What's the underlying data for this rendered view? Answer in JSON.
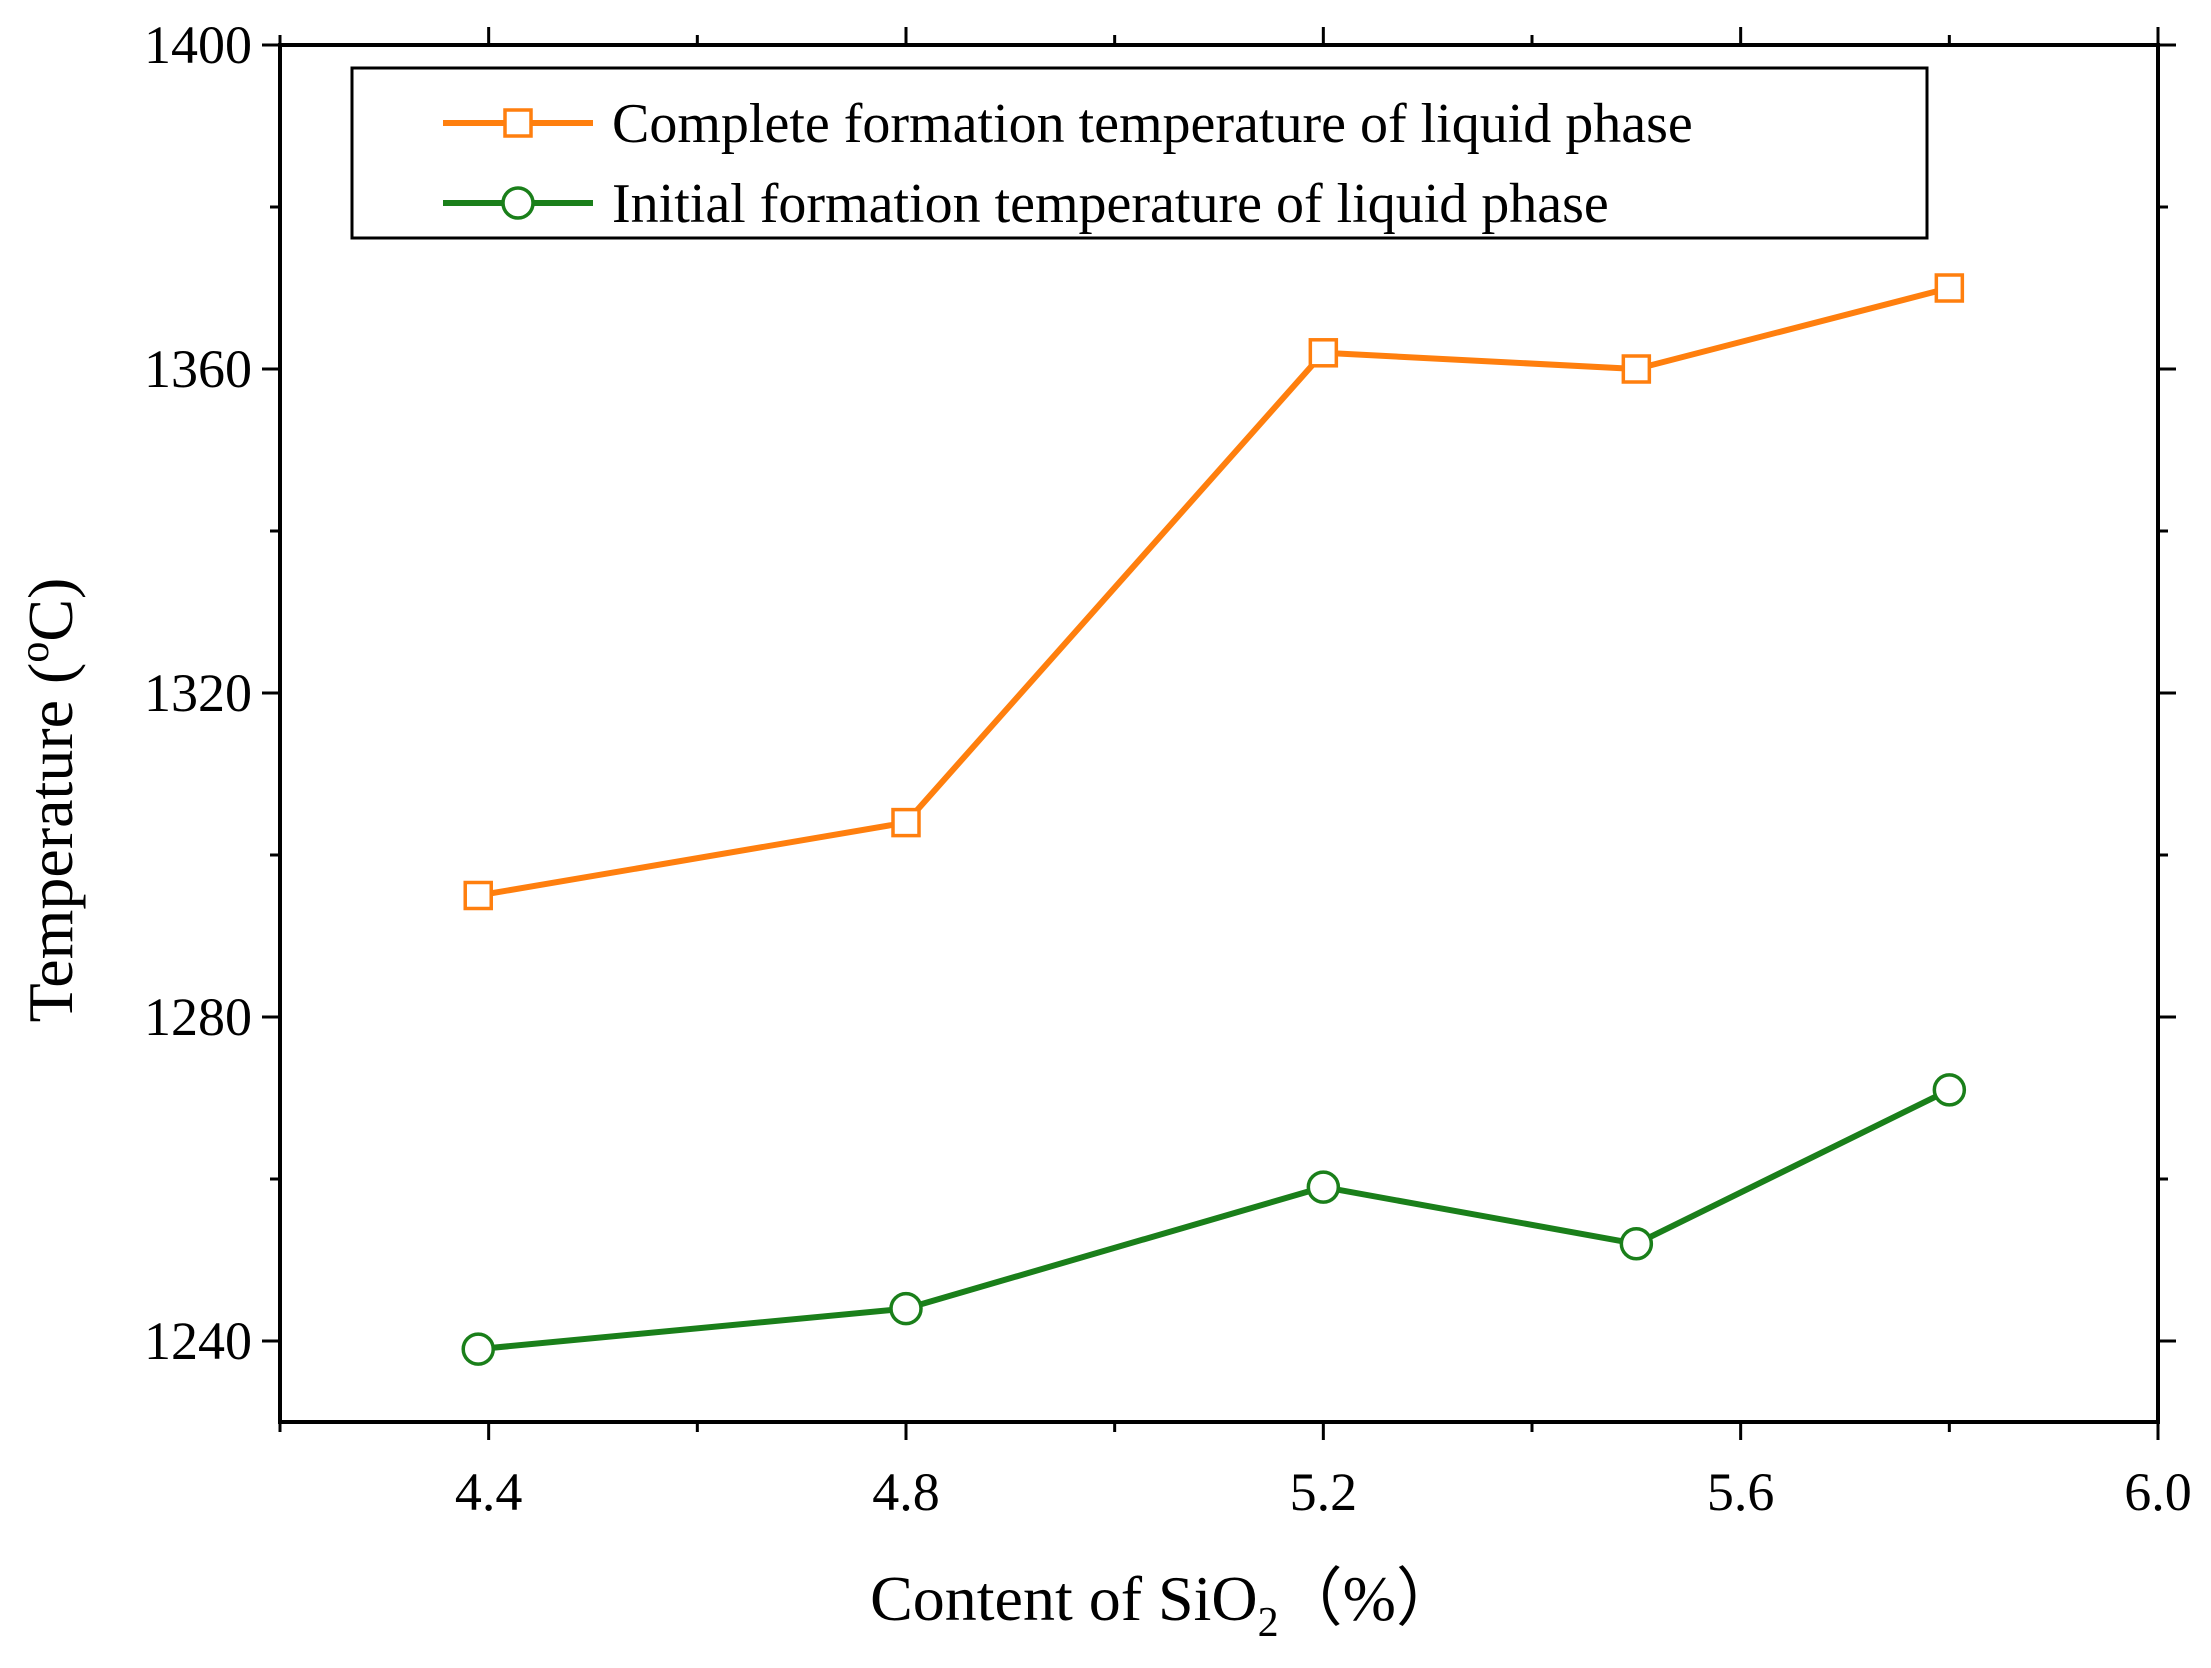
{
  "chart_data": {
    "type": "line",
    "title": "",
    "xlabel_prefix": "Content of SiO",
    "xlabel_sub": "2",
    "xlabel_suffix": "（%）",
    "ylabel_prefix": "Temperature (",
    "ylabel_sup": "o",
    "ylabel_suffix": "C)",
    "xlim": [
      4.2,
      6.0
    ],
    "ylim": [
      1230,
      1400
    ],
    "x_ticks": [
      "4.4",
      "4.8",
      "5.2",
      "5.6",
      "6.0"
    ],
    "y_ticks": [
      "1240",
      "1280",
      "1320",
      "1360",
      "1400"
    ],
    "x_tick_values": [
      4.4,
      4.8,
      5.2,
      5.6,
      6.0
    ],
    "y_tick_values": [
      1240,
      1280,
      1320,
      1360,
      1400
    ],
    "x": [
      4.39,
      4.8,
      5.2,
      5.5,
      5.8
    ],
    "legend_position": "top",
    "grid": false,
    "series": [
      {
        "name": "Complete formation temperature of liquid phase",
        "values": [
          1295,
          1304,
          1362,
          1360,
          1370
        ],
        "color": "#ff7f0e",
        "marker": "square"
      },
      {
        "name": "Initial formation temperature of liquid phase",
        "values": [
          1239,
          1244,
          1259,
          1252,
          1271
        ],
        "color": "#1a7f1a",
        "marker": "circle"
      }
    ]
  }
}
